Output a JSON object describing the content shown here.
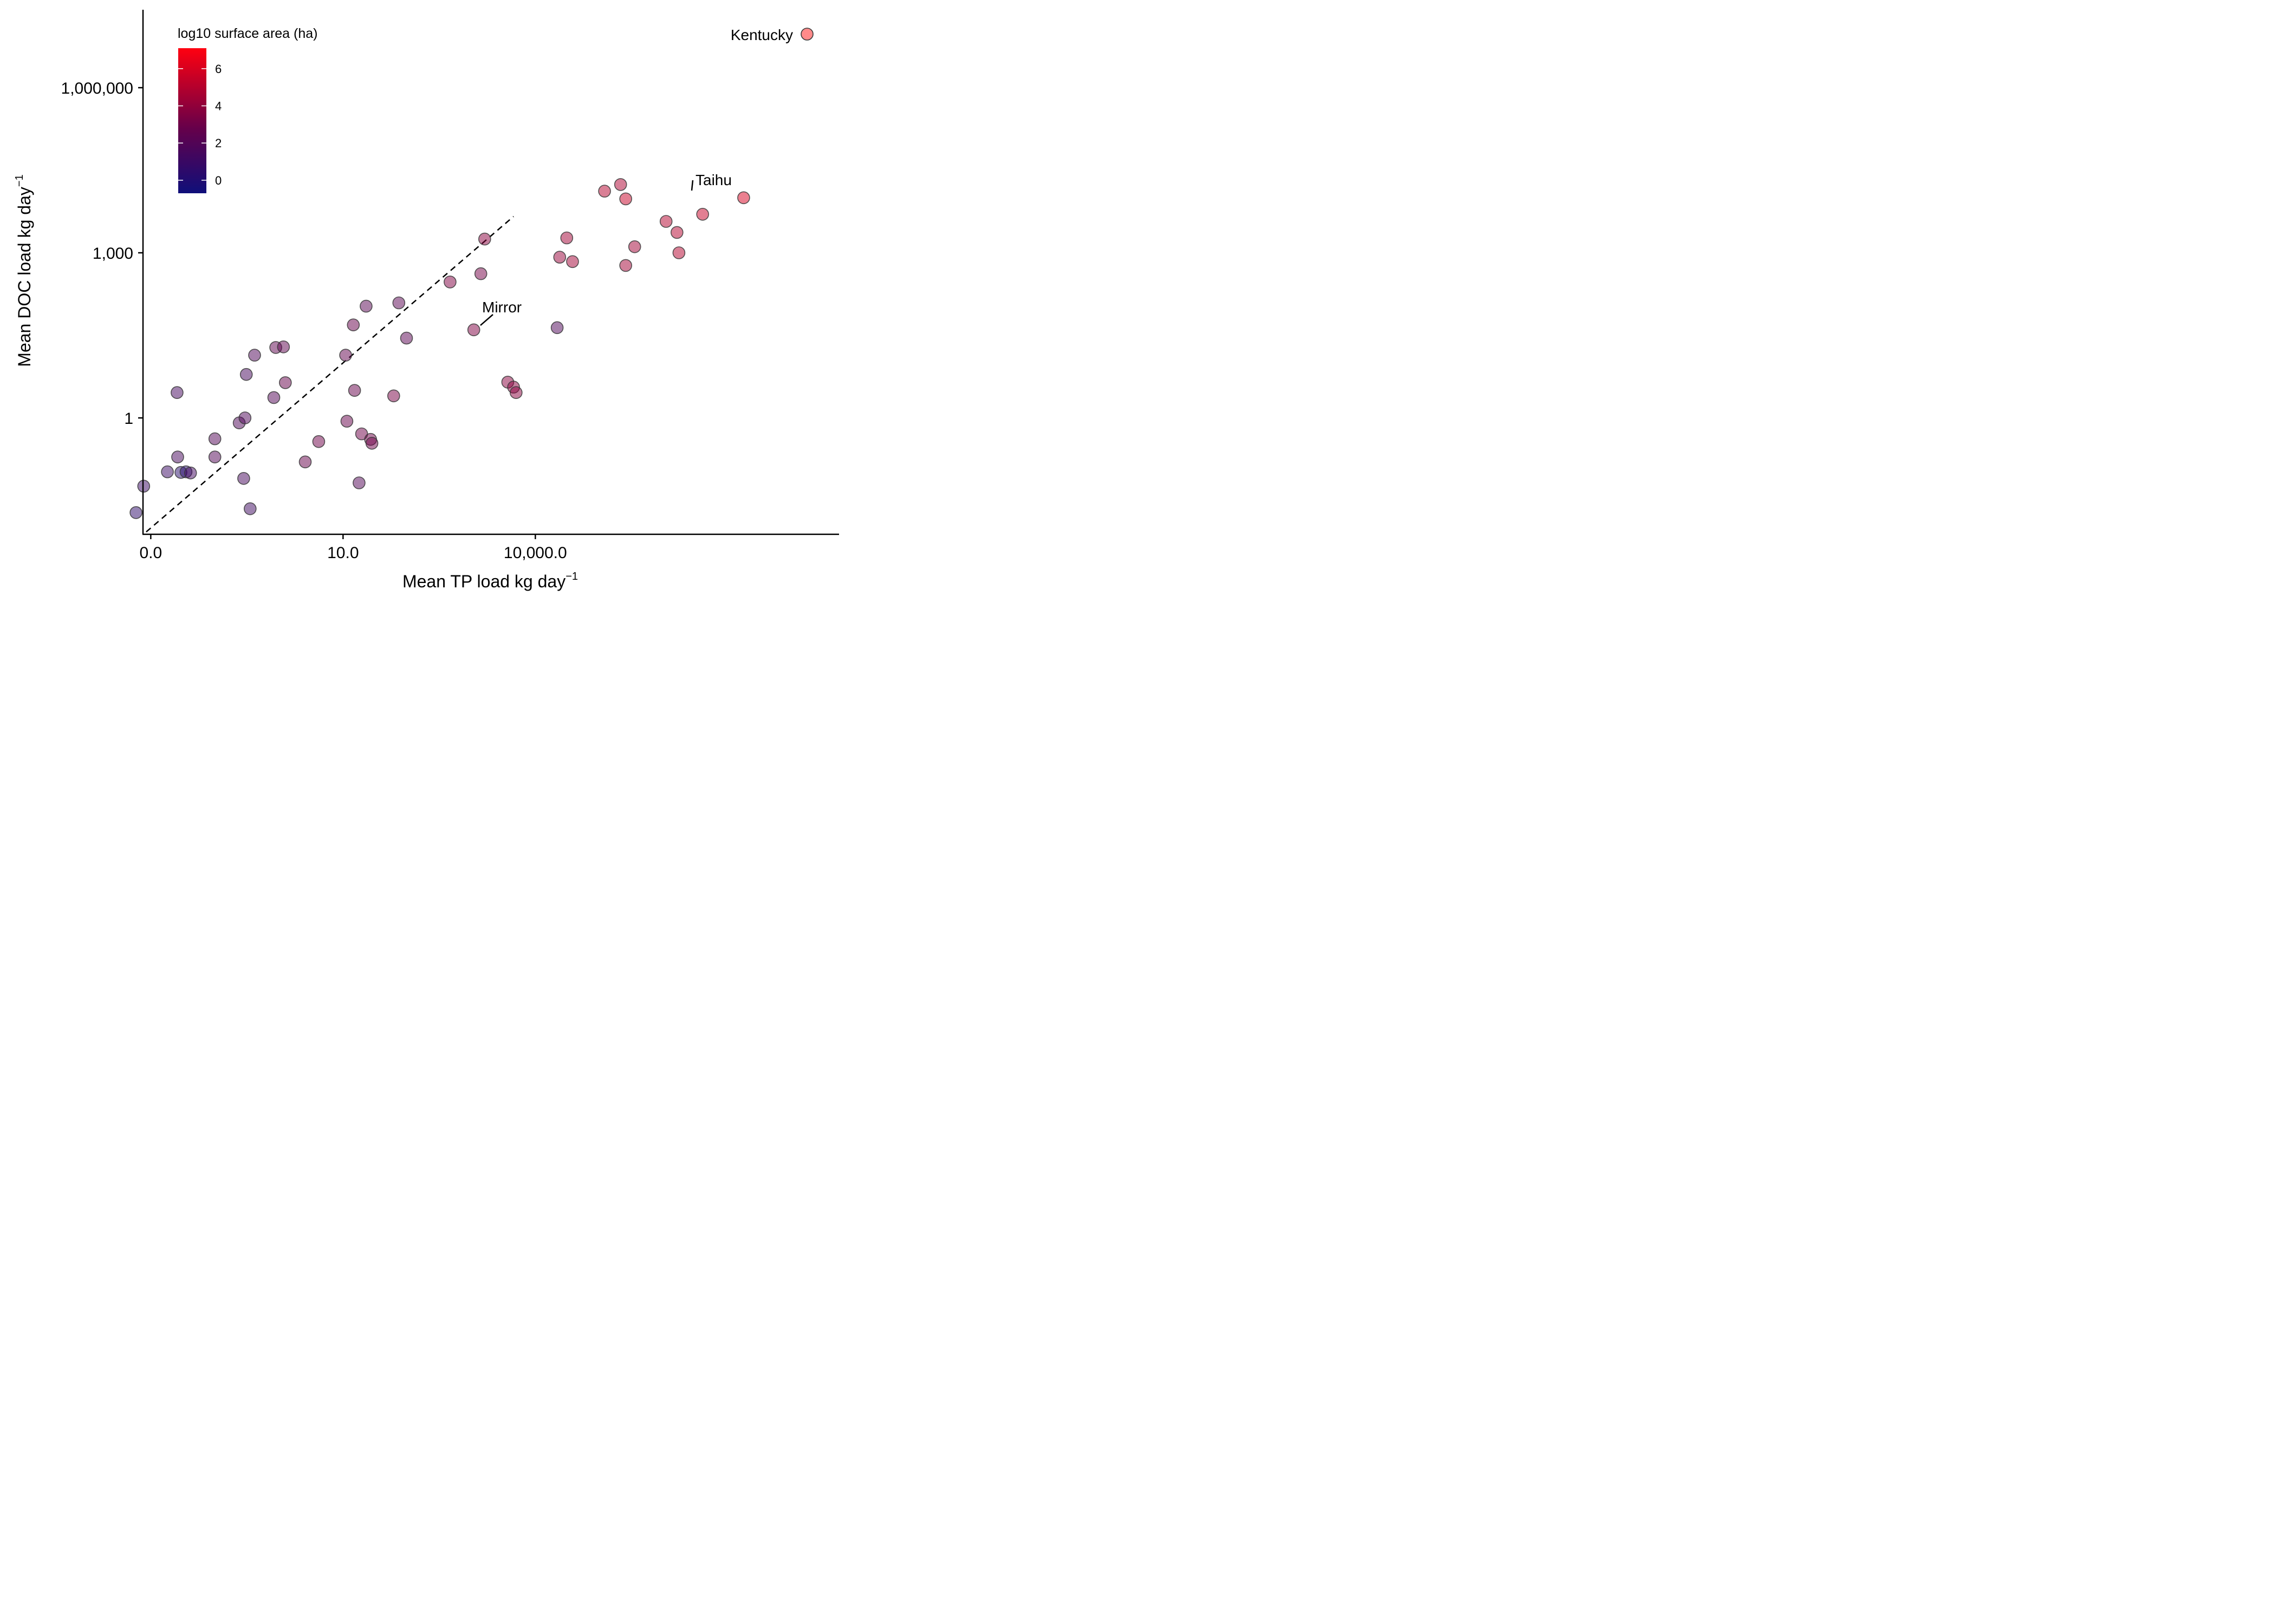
{
  "chart_data": {
    "type": "scatter",
    "x_scale": "log10",
    "y_scale": "log10",
    "xlabel": "Mean TP load kg day",
    "xlabel_superscript": "−1",
    "ylabel": "Mean DOC load kg day",
    "ylabel_superscript": "−1",
    "x_ticks": [
      {
        "value": 0.01,
        "label": "0.0"
      },
      {
        "value": 10,
        "label": "10.0"
      },
      {
        "value": 10000,
        "label": "10,000.0"
      }
    ],
    "y_ticks": [
      {
        "value": 1,
        "label": "1"
      },
      {
        "value": 1000,
        "label": "1,000"
      },
      {
        "value": 1000000,
        "label": "1,000,000"
      }
    ],
    "xlim_log10": [
      -2.88,
      3.56
    ],
    "ylim_log10": [
      -2.12,
      5.45
    ],
    "reference_line": "1:1 dashed",
    "colorbar": {
      "title": "log10 surface area (ha)",
      "min": -0.7,
      "max": 7.1,
      "ticks": [
        0,
        2,
        4,
        6
      ],
      "low_color": "#0f0f7a",
      "high_color": "#ff0010",
      "placement": "top-left"
    },
    "legend_entry": "Kentucky",
    "annotations": [
      {
        "label": "Mirror"
      },
      {
        "label": "Taihu"
      }
    ],
    "points": [
      {
        "x": -2.23,
        "y": -1.72,
        "c": 0.5
      },
      {
        "x": -2.11,
        "y": -1.24,
        "c": 1.0
      },
      {
        "x": -1.74,
        "y": -0.98,
        "c": 1.0
      },
      {
        "x": -1.53,
        "y": -0.99,
        "c": 0.3
      },
      {
        "x": -1.45,
        "y": -0.98,
        "c": 0.3
      },
      {
        "x": -1.38,
        "y": -1.0,
        "c": 1.3
      },
      {
        "x": -1.58,
        "y": -0.71,
        "c": 1.5
      },
      {
        "x": -1.59,
        "y": 0.46,
        "c": 1.4
      },
      {
        "x": -1.0,
        "y": -0.38,
        "c": 2.0
      },
      {
        "x": -1.0,
        "y": -0.71,
        "c": 2.0
      },
      {
        "x": -0.62,
        "y": -0.09,
        "c": 1.8
      },
      {
        "x": -0.51,
        "y": 0.79,
        "c": 1.5
      },
      {
        "x": -0.53,
        "y": 0.0,
        "c": 1.8
      },
      {
        "x": -0.38,
        "y": 1.14,
        "c": 1.8
      },
      {
        "x": -0.55,
        "y": -1.1,
        "c": 1.5
      },
      {
        "x": -0.45,
        "y": -1.65,
        "c": 1.2
      },
      {
        "x": -0.08,
        "y": 0.37,
        "c": 2.0
      },
      {
        "x": -0.05,
        "y": 1.28,
        "c": 2.5
      },
      {
        "x": 0.07,
        "y": 1.29,
        "c": 2.5
      },
      {
        "x": 0.1,
        "y": 0.64,
        "c": 2.8
      },
      {
        "x": 0.41,
        "y": -0.8,
        "c": 2.8
      },
      {
        "x": 0.62,
        "y": -0.43,
        "c": 3.0
      },
      {
        "x": 1.06,
        "y": -0.06,
        "c": 2.8
      },
      {
        "x": 1.04,
        "y": 1.14,
        "c": 2.6
      },
      {
        "x": 1.16,
        "y": 1.69,
        "c": 2.8
      },
      {
        "x": 1.18,
        "y": 0.5,
        "c": 2.8
      },
      {
        "x": 1.29,
        "y": -0.29,
        "c": 3.0
      },
      {
        "x": 1.25,
        "y": -1.18,
        "c": 2.0
      },
      {
        "x": 1.36,
        "y": 2.03,
        "c": 2.2
      },
      {
        "x": 1.43,
        "y": -0.39,
        "c": 3.0
      },
      {
        "x": 1.45,
        "y": -0.46,
        "c": 3.0
      },
      {
        "x": 1.79,
        "y": 0.4,
        "c": 3.3
      },
      {
        "x": 1.87,
        "y": 2.09,
        "c": 2.3
      },
      {
        "x": 1.99,
        "y": 1.45,
        "c": 2.3
      },
      {
        "x": 2.67,
        "y": 2.47,
        "c": 3.5
      },
      {
        "x": 3.04,
        "y": 1.6,
        "c": 3.5
      },
      {
        "x": 3.15,
        "y": 2.62,
        "c": 3.2
      },
      {
        "x": 3.21,
        "y": 3.25,
        "c": 3.8
      },
      {
        "x": 3.57,
        "y": 0.65,
        "c": 3.8
      },
      {
        "x": 3.66,
        "y": 0.56,
        "c": 3.8
      },
      {
        "x": 3.7,
        "y": 0.46,
        "c": 3.8
      },
      {
        "x": 4.34,
        "y": 1.64,
        "c": 1.8
      },
      {
        "x": 4.38,
        "y": 2.92,
        "c": 4.2
      },
      {
        "x": 4.49,
        "y": 3.27,
        "c": 4.5
      },
      {
        "x": 4.58,
        "y": 2.84,
        "c": 4.5
      },
      {
        "x": 5.08,
        "y": 4.12,
        "c": 5.0
      },
      {
        "x": 5.33,
        "y": 4.24,
        "c": 4.8
      },
      {
        "x": 5.41,
        "y": 3.98,
        "c": 5.5
      },
      {
        "x": 5.41,
        "y": 2.77,
        "c": 4.5
      },
      {
        "x": 5.55,
        "y": 3.11,
        "c": 4.5
      },
      {
        "x": 6.04,
        "y": 3.57,
        "c": 5.0
      },
      {
        "x": 6.21,
        "y": 3.37,
        "c": 5.0
      },
      {
        "x": 6.24,
        "y": 3.0,
        "c": 5.0
      },
      {
        "x": 6.61,
        "y": 3.7,
        "c": 5.5
      },
      {
        "x": 7.25,
        "y": 4.0,
        "c": 6.0
      }
    ]
  }
}
